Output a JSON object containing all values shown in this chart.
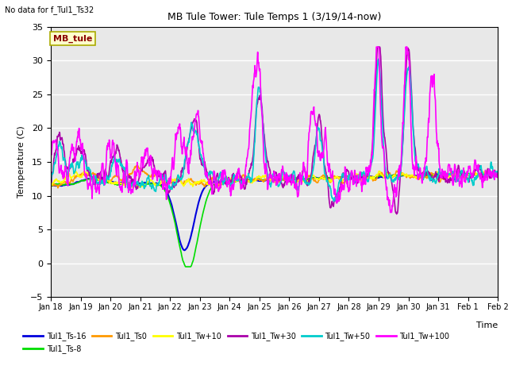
{
  "title": "MB Tule Tower: Tule Temps 1 (3/19/14-now)",
  "no_data_label": "No data for f_Tul1_Ts32",
  "watermark": "MB_tule",
  "xlabel": "Time",
  "ylabel": "Temperature (C)",
  "ylim": [
    -5,
    35
  ],
  "yticks": [
    -5,
    0,
    5,
    10,
    15,
    20,
    25,
    30,
    35
  ],
  "axes_bg": "#e8e8e8",
  "series": [
    {
      "label": "Tul1_Ts-16",
      "color": "#0000dd",
      "lw": 1.5
    },
    {
      "label": "Tul1_Ts-8",
      "color": "#00dd00",
      "lw": 1.2
    },
    {
      "label": "Tul1_Ts0",
      "color": "#ff9900",
      "lw": 1.2
    },
    {
      "label": "Tul1_Tw+10",
      "color": "#ffff00",
      "lw": 1.2
    },
    {
      "label": "Tul1_Tw+30",
      "color": "#aa00aa",
      "lw": 1.2
    },
    {
      "label": "Tul1_Tw+50",
      "color": "#00cccc",
      "lw": 1.2
    },
    {
      "label": "Tul1_Tw+100",
      "color": "#ff00ff",
      "lw": 1.2
    }
  ],
  "xtick_labels": [
    "Jan 18",
    "Jan 19",
    "Jan 20",
    "Jan 21",
    "Jan 22",
    "Jan 23",
    "Jan 24",
    "Jan 25",
    "Jan 26",
    "Jan 27",
    "Jan 28",
    "Jan 29",
    "Jan 30",
    "Jan 31",
    "Feb 1",
    "Feb 2"
  ],
  "font_size": 8
}
